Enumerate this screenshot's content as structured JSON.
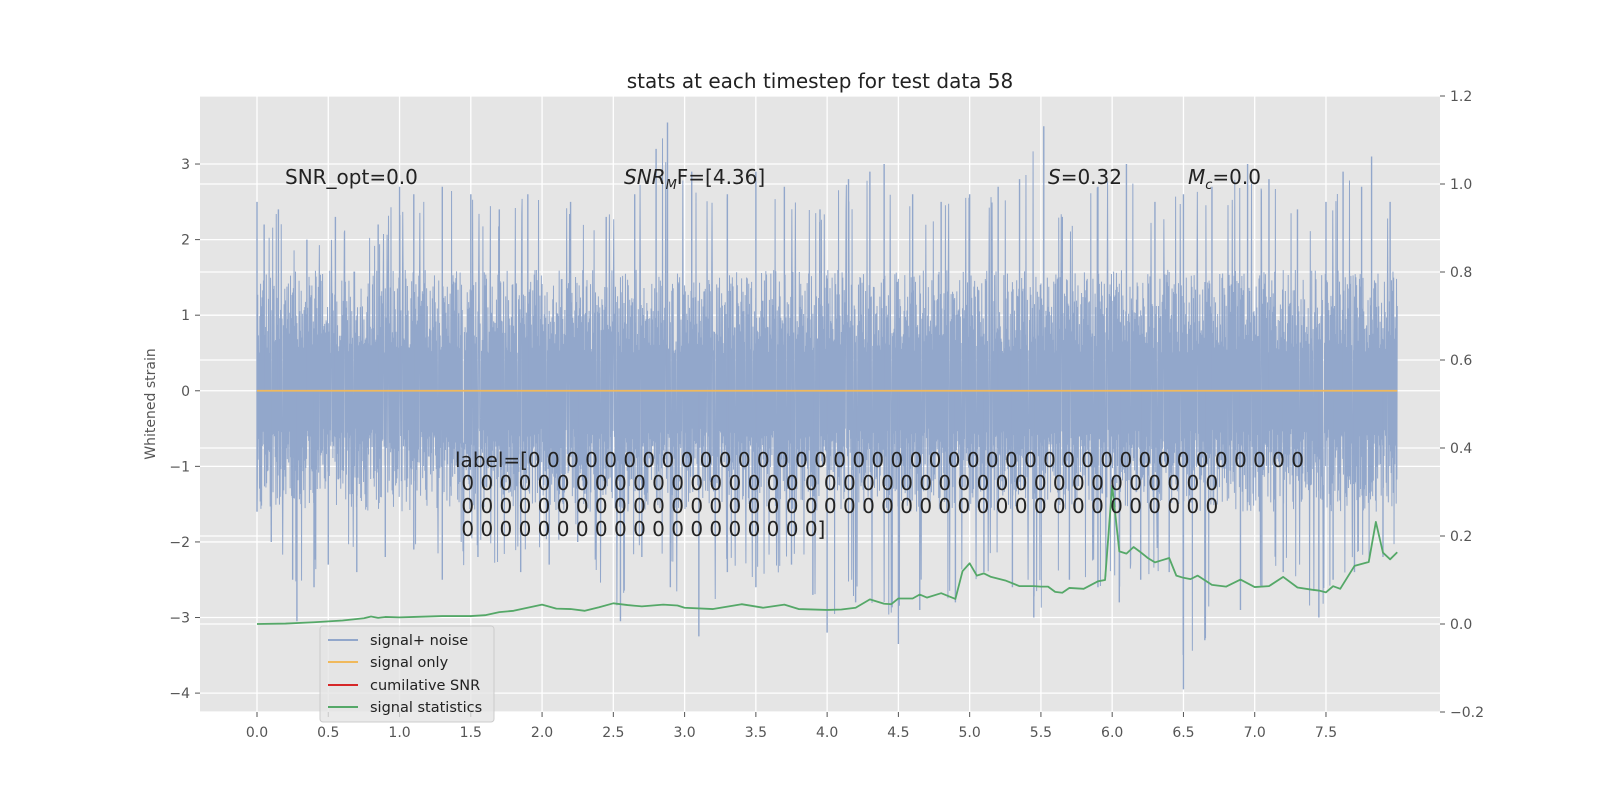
{
  "chart_data": {
    "type": "line",
    "title": "stats at each timestep for test data 58",
    "ylabel": "Whitened strain",
    "xlabel": "",
    "xlim": [
      -0.4,
      8.3
    ],
    "ylim": [
      -4.25,
      3.9
    ],
    "y2lim": [
      -0.2,
      1.2
    ],
    "grid": true,
    "x_ticks": [
      "0.0",
      "0.5",
      "1.0",
      "1.5",
      "2.0",
      "2.5",
      "3.0",
      "3.5",
      "4.0",
      "4.5",
      "5.0",
      "5.5",
      "6.0",
      "6.5",
      "7.0",
      "7.5"
    ],
    "y_ticks": [
      "3",
      "2",
      "1",
      "0",
      "−1",
      "−2",
      "−3",
      "−4"
    ],
    "y2_ticks": [
      "1.2",
      "1.0",
      "0.8",
      "0.6",
      "0.4",
      "0.2",
      "0.0",
      "−0.2"
    ],
    "annotations": {
      "snr_opt": "SNR_opt=0.0",
      "snr_mf_main": "SNR",
      "snr_mf_sub": "M",
      "snr_mf_rest": "F=[4.36]",
      "s_var": "S",
      "s_rest": "=0.32",
      "mc_main": "M",
      "mc_sub": "c",
      "mc_rest": "=0.0",
      "label_lines": [
        "label=[0 0 0 0 0 0 0 0 0 0 0 0 0 0 0 0 0 0 0 0 0 0 0 0 0 0 0 0 0 0 0 0 0 0 0 0 0 0 0 0 0",
        " 0 0 0 0 0 0 0 0 0 0 0 0 0 0 0 0 0 0 0 0 0 0 0 0 0 0 0 0 0 0 0 0 0 0 0 0 0 0 0 0",
        " 0 0 0 0 0 0 0 0 0 0 0 0 0 0 0 0 0 0 0 0 0 0 0 0 0 0 0 0 0 0 0 0 0 0 0 0 0 0 0 0",
        " 0 0 0 0 0 0 0 0 0 0 0 0 0 0 0 0 0 0 0]"
      ]
    },
    "series": [
      {
        "name": "signal+ noise",
        "color": "#92a7cb",
        "axis": "left",
        "x_range": [
          0.0,
          8.0
        ],
        "peaks_high": [
          [
            0.0,
            2.5
          ],
          [
            0.05,
            2.2
          ],
          [
            0.15,
            2.4
          ],
          [
            0.35,
            2.0
          ],
          [
            0.55,
            2.3
          ],
          [
            0.85,
            2.2
          ],
          [
            1.0,
            2.7
          ],
          [
            1.1,
            2.6
          ],
          [
            1.3,
            2.7
          ],
          [
            1.5,
            2.6
          ],
          [
            1.7,
            2.4
          ],
          [
            1.9,
            2.6
          ],
          [
            2.2,
            2.5
          ],
          [
            2.45,
            2.3
          ],
          [
            2.65,
            2.6
          ],
          [
            2.8,
            3.2
          ],
          [
            2.88,
            3.55
          ],
          [
            3.05,
            2.9
          ],
          [
            3.3,
            2.6
          ],
          [
            3.5,
            2.9
          ],
          [
            3.7,
            2.7
          ],
          [
            3.95,
            2.4
          ],
          [
            4.15,
            2.8
          ],
          [
            4.3,
            2.9
          ],
          [
            4.4,
            3.0
          ],
          [
            4.6,
            2.6
          ],
          [
            4.8,
            2.5
          ],
          [
            5.0,
            2.6
          ],
          [
            5.2,
            2.7
          ],
          [
            5.35,
            2.8
          ],
          [
            5.52,
            3.5
          ],
          [
            5.65,
            2.3
          ],
          [
            5.9,
            2.7
          ],
          [
            6.1,
            3.0
          ],
          [
            6.3,
            2.5
          ],
          [
            6.5,
            2.6
          ],
          [
            6.7,
            2.7
          ],
          [
            6.95,
            3.0
          ],
          [
            7.1,
            2.8
          ],
          [
            7.3,
            2.4
          ],
          [
            7.5,
            2.5
          ],
          [
            7.62,
            2.9
          ],
          [
            7.75,
            2.7
          ],
          [
            7.82,
            3.1
          ],
          [
            7.95,
            2.5
          ]
        ],
        "peaks_low": [
          [
            0.0,
            -1.6
          ],
          [
            0.1,
            -2.0
          ],
          [
            0.25,
            -2.5
          ],
          [
            0.28,
            -3.05
          ],
          [
            0.4,
            -2.6
          ],
          [
            0.5,
            -2.3
          ],
          [
            0.7,
            -2.4
          ],
          [
            0.9,
            -2.2
          ],
          [
            1.1,
            -2.1
          ],
          [
            1.3,
            -2.5
          ],
          [
            1.55,
            -2.2
          ],
          [
            1.85,
            -2.4
          ],
          [
            2.05,
            -2.3
          ],
          [
            2.25,
            -2.0
          ],
          [
            2.55,
            -3.05
          ],
          [
            2.7,
            -2.2
          ],
          [
            2.9,
            -2.6
          ],
          [
            3.1,
            -3.25
          ],
          [
            3.3,
            -2.4
          ],
          [
            3.5,
            -2.6
          ],
          [
            3.75,
            -2.3
          ],
          [
            3.9,
            -2.7
          ],
          [
            4.0,
            -3.2
          ],
          [
            4.2,
            -2.8
          ],
          [
            4.5,
            -3.35
          ],
          [
            4.65,
            -2.9
          ],
          [
            4.9,
            -2.8
          ],
          [
            5.1,
            -2.4
          ],
          [
            5.3,
            -2.6
          ],
          [
            5.45,
            -3.0
          ],
          [
            5.7,
            -2.5
          ],
          [
            5.9,
            -2.6
          ],
          [
            6.05,
            -2.8
          ],
          [
            6.2,
            -2.5
          ],
          [
            6.4,
            -2.4
          ],
          [
            6.5,
            -3.95
          ],
          [
            6.65,
            -3.3
          ],
          [
            6.9,
            -2.9
          ],
          [
            7.05,
            -2.6
          ],
          [
            7.2,
            -2.4
          ],
          [
            7.45,
            -3.0
          ],
          [
            7.55,
            -2.5
          ],
          [
            7.7,
            -2.4
          ],
          [
            7.9,
            -2.2
          ]
        ]
      },
      {
        "name": "signal only",
        "color": "#f0b95c",
        "axis": "left",
        "x": [
          0.0,
          8.0
        ],
        "values": [
          0.0,
          0.0
        ]
      },
      {
        "name": "cumilative SNR",
        "color": "#d62728",
        "axis": "right",
        "x": [],
        "values": []
      },
      {
        "name": "signal statistics",
        "color": "#55a868",
        "axis": "right",
        "x": [
          0.0,
          0.2,
          0.4,
          0.6,
          0.75,
          0.8,
          0.85,
          0.9,
          1.0,
          1.1,
          1.3,
          1.5,
          1.6,
          1.7,
          1.8,
          2.0,
          2.1,
          2.2,
          2.3,
          2.4,
          2.5,
          2.6,
          2.7,
          2.85,
          2.95,
          3.0,
          3.2,
          3.4,
          3.55,
          3.7,
          3.8,
          4.0,
          4.1,
          4.2,
          4.3,
          4.4,
          4.45,
          4.5,
          4.6,
          4.65,
          4.7,
          4.8,
          4.9,
          4.95,
          5.0,
          5.05,
          5.1,
          5.15,
          5.25,
          5.35,
          5.45,
          5.5,
          5.55,
          5.6,
          5.65,
          5.7,
          5.8,
          5.9,
          5.95,
          6.0,
          6.05,
          6.1,
          6.15,
          6.2,
          6.25,
          6.3,
          6.35,
          6.4,
          6.45,
          6.5,
          6.55,
          6.6,
          6.7,
          6.8,
          6.9,
          7.0,
          7.1,
          7.2,
          7.3,
          7.4,
          7.45,
          7.5,
          7.55,
          7.6,
          7.7,
          7.8,
          7.85,
          7.9,
          7.95,
          8.0
        ],
        "values": [
          0.0,
          0.001,
          0.004,
          0.008,
          0.013,
          0.017,
          0.014,
          0.016,
          0.015,
          0.016,
          0.018,
          0.018,
          0.02,
          0.027,
          0.03,
          0.044,
          0.035,
          0.034,
          0.03,
          0.038,
          0.047,
          0.043,
          0.04,
          0.044,
          0.042,
          0.037,
          0.034,
          0.045,
          0.037,
          0.044,
          0.034,
          0.032,
          0.033,
          0.037,
          0.056,
          0.046,
          0.045,
          0.058,
          0.058,
          0.067,
          0.06,
          0.07,
          0.057,
          0.12,
          0.138,
          0.11,
          0.115,
          0.107,
          0.099,
          0.086,
          0.086,
          0.085,
          0.085,
          0.073,
          0.071,
          0.082,
          0.08,
          0.097,
          0.1,
          0.315,
          0.165,
          0.16,
          0.175,
          0.163,
          0.15,
          0.14,
          0.145,
          0.15,
          0.11,
          0.105,
          0.102,
          0.11,
          0.089,
          0.085,
          0.101,
          0.084,
          0.086,
          0.107,
          0.083,
          0.078,
          0.076,
          0.072,
          0.086,
          0.08,
          0.132,
          0.141,
          0.232,
          0.162,
          0.147,
          0.163
        ]
      }
    ]
  }
}
